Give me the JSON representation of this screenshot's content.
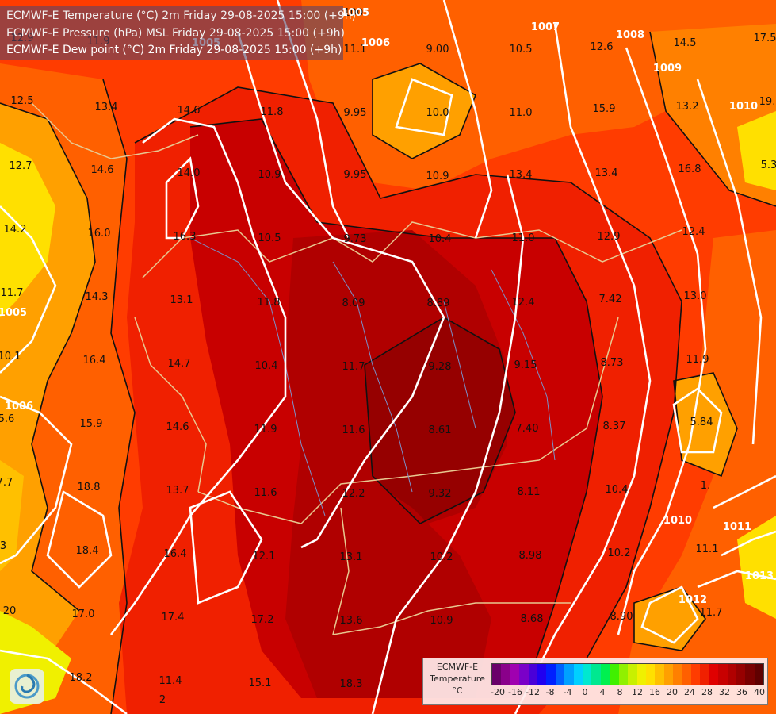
{
  "header": {
    "lines": [
      "ECMWF-E Temperature (°C) 2m Friday 29-08-2025 15:00 (+9h)",
      "ECMWF-E Pressure (hPa) MSL Friday 29-08-2025 15:00 (+9h)",
      "ECMWF-E Dew point (°C) 2m Friday 29-08-2025 15:00 (+9h)"
    ]
  },
  "legend": {
    "title_line1": "ECMWF-E",
    "title_line2": "Temperature",
    "unit": "°C",
    "ticks": [
      "-20",
      "-16",
      "-12",
      "-8",
      "-4",
      "0",
      "4",
      "8",
      "12",
      "16",
      "20",
      "24",
      "28",
      "32",
      "36",
      "40"
    ],
    "colors": [
      "#6a006a",
      "#8a008a",
      "#a000b0",
      "#7a00c8",
      "#4a00d8",
      "#2000f0",
      "#0020ff",
      "#0060ff",
      "#00a0ff",
      "#00d0ff",
      "#00e8d0",
      "#00e890",
      "#00f050",
      "#40f000",
      "#90f000",
      "#c8f000",
      "#f0f000",
      "#ffe000",
      "#ffc000",
      "#ffa000",
      "#ff8000",
      "#ff6000",
      "#ff3c00",
      "#f02000",
      "#e00000",
      "#c80000",
      "#b00000",
      "#960000",
      "#7a0000",
      "#600000"
    ]
  },
  "dew_point_labels": [
    "11.9",
    "1005",
    "12.9",
    "11.1",
    "9.00",
    "10.5",
    "12.6",
    "14.5",
    "17.5",
    "12.5",
    "13.4",
    "14.6",
    "11.8",
    "9.95",
    "10.0",
    "11.0",
    "15.9",
    "13.2",
    "19.",
    "12.7",
    "14.6",
    "14.0",
    "10.9",
    "9.95",
    "10.9",
    "13.4",
    "13.4",
    "16.8",
    "5.3",
    "14.2",
    "16.0",
    "16.3",
    "10.5",
    "9.73",
    "10.4",
    "11.0",
    "12.9",
    "12.4",
    "11.7",
    "14.3",
    "13.1",
    "11.8",
    "8.09",
    "8.89",
    "12.4",
    "7.42",
    "13.0",
    "10.1",
    "16.4",
    "14.7",
    "10.4",
    "11.7",
    "9.28",
    "9.15",
    "8.73",
    "11.9",
    "5.6",
    "15.9",
    "14.6",
    "11.9",
    "11.6",
    "8.61",
    "7.40",
    "8.37",
    "5.84",
    "7.7",
    "18.8",
    "13.7",
    "11.6",
    "12.2",
    "9.32",
    "8.11",
    "10.4",
    "1.",
    "3",
    "18.4",
    "16.4",
    "12.1",
    "13.1",
    "10.2",
    "8.98",
    "10.2",
    "11.1",
    "20",
    "17.0",
    "17.4",
    "17.2",
    "13.6",
    "10.9",
    "8.68",
    "8.90",
    "11.7",
    "18.2",
    "11.4",
    "15.1",
    "18.3",
    "2"
  ],
  "isobar_labels": [
    "1005",
    "1006",
    "1007",
    "1008",
    "1009",
    "1010",
    "1005",
    "1006",
    "1010",
    "1011",
    "1012",
    "1013",
    "1005"
  ]
}
